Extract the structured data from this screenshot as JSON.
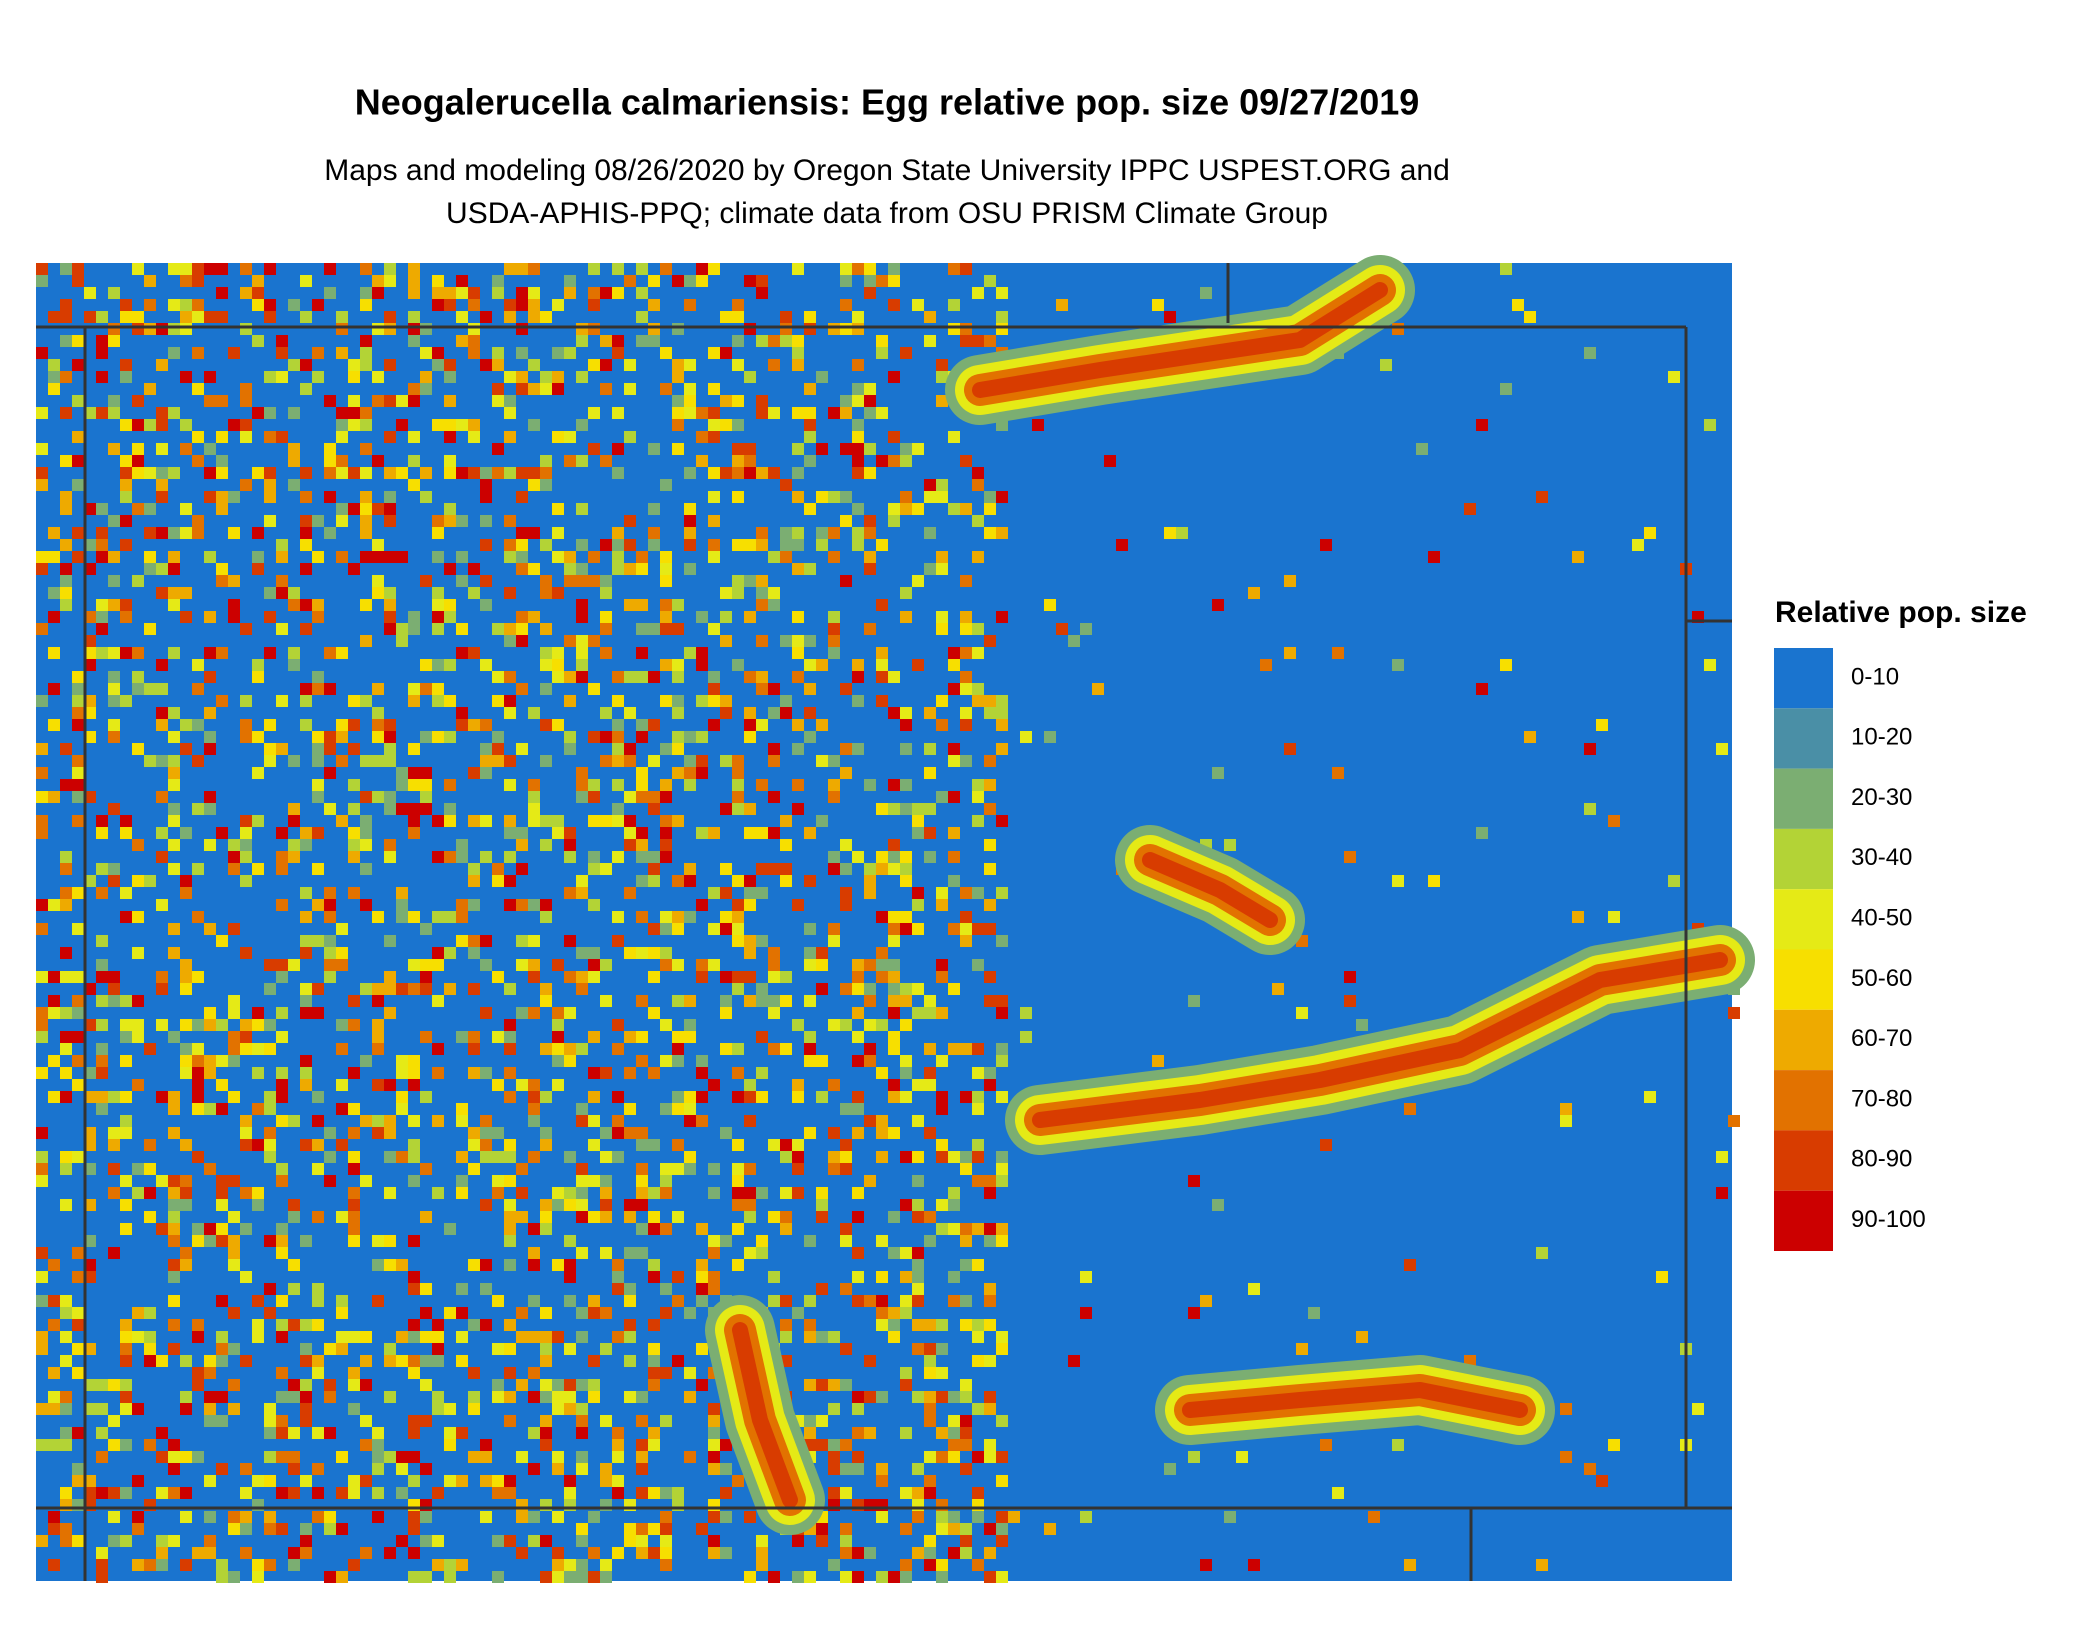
{
  "title": "Neogalerucella calmariensis: Egg relative pop. size 09/27/2019",
  "subtitle": [
    "Maps and modeling 08/26/2020 by Oregon State University IPPC USPEST.ORG and",
    "USDA-APHIS-PPQ; climate data from OSU PRISM Climate Group"
  ],
  "legend": {
    "title": "Relative pop. size",
    "items": [
      {
        "label": "0-10",
        "color": "#1a74cf"
      },
      {
        "label": "10-20",
        "color": "#4a8fa6"
      },
      {
        "label": "20-30",
        "color": "#7bae72"
      },
      {
        "label": "30-40",
        "color": "#b3d336"
      },
      {
        "label": "40-50",
        "color": "#e5ea16"
      },
      {
        "label": "50-60",
        "color": "#f7df00"
      },
      {
        "label": "60-70",
        "color": "#eeaa00"
      },
      {
        "label": "70-80",
        "color": "#e27200"
      },
      {
        "label": "80-90",
        "color": "#d83c00"
      },
      {
        "label": "90-100",
        "color": "#cc0000"
      }
    ]
  }
}
